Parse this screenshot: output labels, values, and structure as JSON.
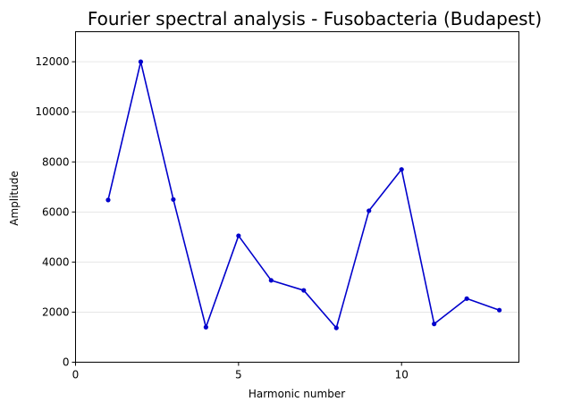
{
  "chart_data": {
    "type": "line",
    "title": "Fourier spectral analysis - Fusobacteria (Budapest)",
    "xlabel": "Harmonic number",
    "ylabel": "Amplitude",
    "xlim": [
      0,
      13.6
    ],
    "ylim": [
      0,
      13200
    ],
    "xticks": [
      0,
      5,
      10
    ],
    "yticks": [
      0,
      2000,
      4000,
      6000,
      8000,
      10000,
      12000
    ],
    "grid": "horizontal",
    "series": [
      {
        "color": "#0000cc",
        "x": [
          1,
          2,
          3,
          4,
          5,
          6,
          7,
          8,
          9,
          10,
          11,
          12,
          13
        ],
        "y": [
          6480,
          12000,
          6500,
          1400,
          5050,
          3270,
          2870,
          1370,
          6050,
          7700,
          1530,
          2540,
          2080
        ]
      }
    ]
  }
}
